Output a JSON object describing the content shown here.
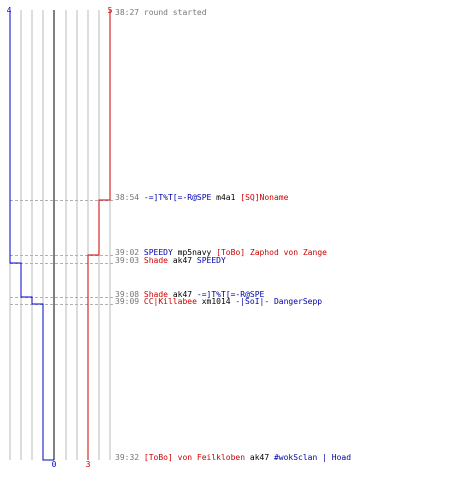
{
  "team_colors": {
    "blue": "#0000cc",
    "red": "#cc0000",
    "grid": "#bbbbbb",
    "center": "#555555",
    "dash": "#b0b0b0"
  },
  "counts": {
    "blue_start": "4",
    "red_start": "5",
    "blue_end": "0",
    "red_end": "3"
  },
  "events": [
    {
      "time": "38:27",
      "parts": [
        {
          "text": "round started",
          "color": "gray"
        }
      ]
    },
    {
      "time": "38:54",
      "parts": [
        {
          "text": "-=]T%T[=-R@SPE",
          "color": "blue"
        },
        {
          "text": " m4a1 ",
          "color": "black"
        },
        {
          "text": "[SQ]Noname",
          "color": "red"
        }
      ]
    },
    {
      "time": "39:02",
      "parts": [
        {
          "text": "SPEEDY",
          "color": "blue"
        },
        {
          "text": " mp5navy ",
          "color": "black"
        },
        {
          "text": "[ToBo] Zaphod von Zange",
          "color": "red"
        }
      ]
    },
    {
      "time": "39:03",
      "parts": [
        {
          "text": "Shade",
          "color": "red"
        },
        {
          "text": " ak47 ",
          "color": "black"
        },
        {
          "text": "SPEEDY",
          "color": "blue"
        }
      ]
    },
    {
      "time": "39:08",
      "parts": [
        {
          "text": "Shade",
          "color": "red"
        },
        {
          "text": " ak47 ",
          "color": "black"
        },
        {
          "text": "-=]T%T[=-R@SPE",
          "color": "blue"
        }
      ]
    },
    {
      "time": "39:09",
      "parts": [
        {
          "text": "CC|Killabee",
          "color": "red"
        },
        {
          "text": " xm1014 ",
          "color": "black"
        },
        {
          "text": "-|SoI|- DangerSepp",
          "color": "blue"
        }
      ]
    },
    {
      "time": "39:32",
      "parts": [
        {
          "text": "[ToBo] von Feilkloben",
          "color": "red"
        },
        {
          "text": " ak47 ",
          "color": "black"
        },
        {
          "text": "#wokSclan | Hoad",
          "color": "blue"
        }
      ]
    }
  ]
}
